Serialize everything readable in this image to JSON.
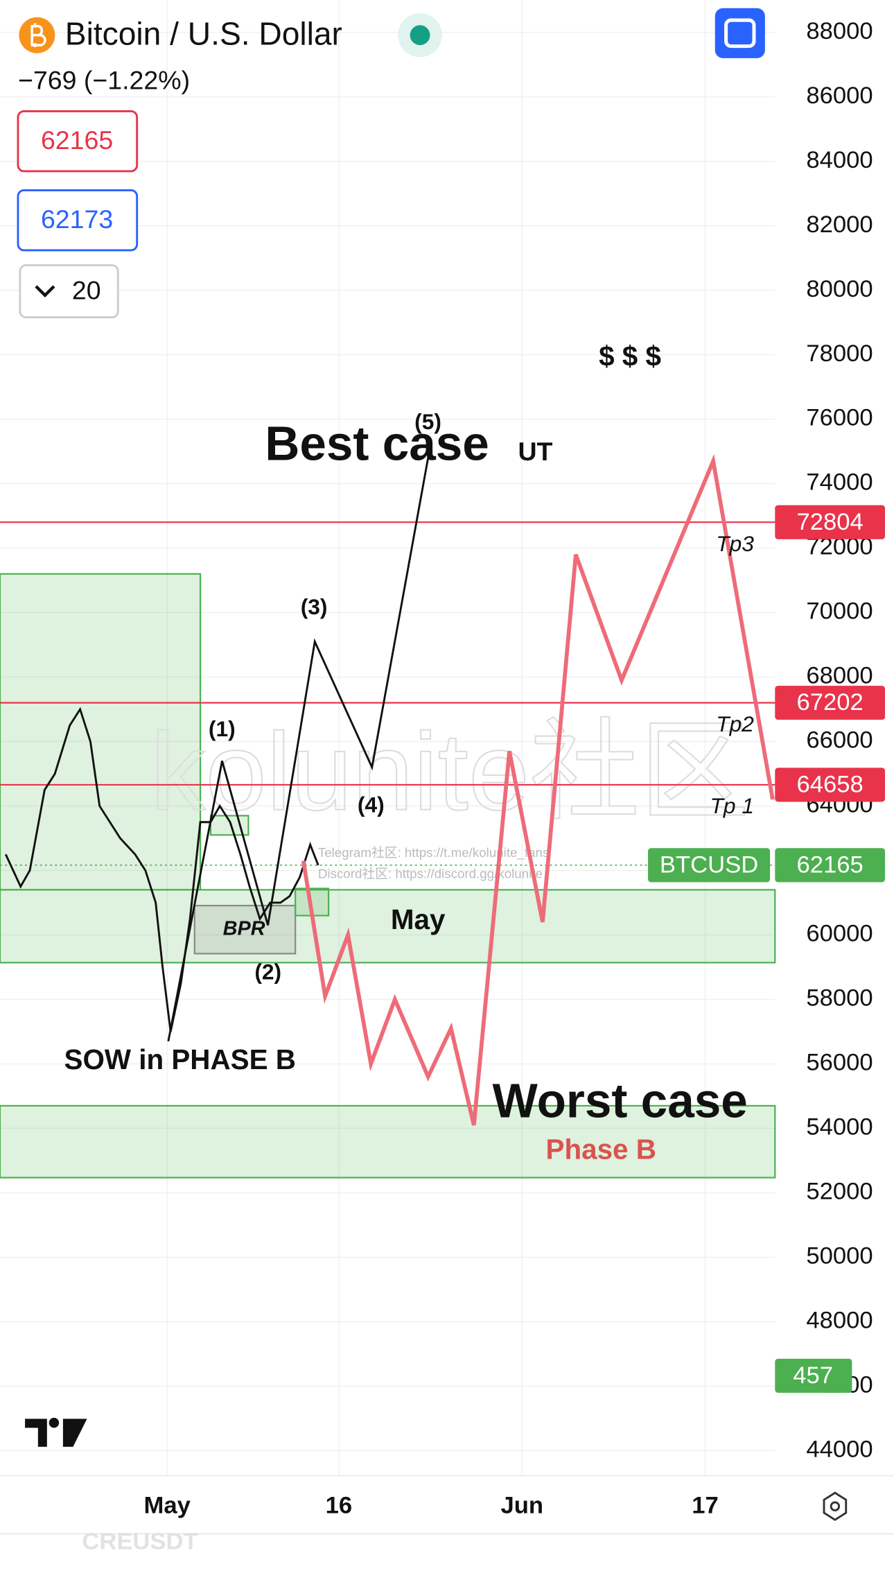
{
  "header": {
    "symbol": "Bitcoin / U.S. Dollar",
    "change": "−769 (−1.22%)",
    "sell": "62165",
    "buy": "62173",
    "quantity": "20"
  },
  "chart_data": {
    "type": "line",
    "xlim": [
      -13.6,
      54.1
    ],
    "xticks": [
      {
        "value": 1,
        "label": "May"
      },
      16,
      {
        "value": 32,
        "label": "Jun"
      },
      {
        "value": 48,
        "label": "17"
      }
    ],
    "ylim": [
      43220,
      89000
    ],
    "yticks": [
      44000,
      46000,
      48000,
      50000,
      52000,
      54000,
      56000,
      58000,
      60000,
      62000,
      64000,
      66000,
      68000,
      70000,
      72000,
      74000,
      76000,
      78000,
      80000,
      82000,
      84000,
      86000,
      88000
    ],
    "grid": true,
    "series": [
      {
        "name": "BTCUSD",
        "color": "#111111",
        "x": [
          -13.1,
          -11.8,
          -11.0,
          -9.7,
          -8.8,
          -7.5,
          -6.6,
          -5.7,
          -4.9,
          -4.0,
          -3.1,
          -1.8,
          -0.9,
          0.0,
          0.6,
          1.3,
          2.2,
          3.0,
          3.9,
          4.8,
          5.6,
          6.5,
          7.4,
          8.2,
          9.1,
          10.0,
          10.9,
          11.7,
          12.6,
          13.5,
          14.2
        ],
        "values": [
          62500,
          61500,
          62000,
          64500,
          65000,
          66500,
          67000,
          66000,
          64000,
          63500,
          63000,
          62500,
          62000,
          61000,
          59000,
          57000,
          58500,
          60500,
          63500,
          63500,
          64000,
          63500,
          62500,
          61500,
          60500,
          61000,
          61000,
          61200,
          61800,
          62800,
          62165
        ]
      },
      {
        "color": "#111111",
        "x": [
          1.1,
          5.8,
          9.8,
          13.9,
          18.9,
          23.8
        ],
        "values": [
          56700,
          65400,
          60300,
          69100,
          65200,
          74800
        ]
      },
      {
        "color": "#ee6b78",
        "x": [
          12.9,
          14.8,
          16.8,
          18.8,
          20.9,
          23.8,
          25.8,
          27.8,
          30.9,
          33.8,
          36.7,
          40.7,
          48.7,
          53.9
        ],
        "values": [
          62300,
          58100,
          60000,
          56000,
          58000,
          55600,
          57100,
          54100,
          65700,
          60400,
          71800,
          67900,
          74700,
          64200
        ]
      }
    ],
    "levels": [
      {
        "value": 72804,
        "color": "#e8334a"
      },
      {
        "value": 67202,
        "color": "#e8334a"
      },
      {
        "value": 64658,
        "color": "#e8334a"
      }
    ],
    "last_price": 62165,
    "last_color": "#4caf50",
    "volume_last": 457,
    "zones": [
      {
        "x": [
          -13.6,
          3.9
        ],
        "y": [
          61400,
          71200
        ],
        "color": "#4caf50"
      },
      {
        "x": [
          -13.6,
          54.1
        ],
        "y": [
          59140,
          61400
        ],
        "color": "#4caf50"
      },
      {
        "x": [
          -13.6,
          54.1
        ],
        "y": [
          52470,
          54700
        ],
        "color": "#4caf50"
      },
      {
        "x": [
          3.4,
          12.2
        ],
        "y": [
          59420,
          60910
        ],
        "color": "#888888"
      },
      {
        "x": [
          4.8,
          8.1
        ],
        "y": [
          63100,
          63700
        ],
        "color": "#4caf50"
      },
      {
        "x": [
          12.2,
          15.1
        ],
        "y": [
          60600,
          61440
        ],
        "color": "#4caf50"
      }
    ],
    "annotations": [
      "$ $ $",
      "Best case",
      "UT",
      "(5)",
      "(3)",
      "(1)",
      "(4)",
      "(2)",
      "BPR",
      "May",
      "SOW in PHASE B",
      "Worst case",
      "Phase B",
      "Tp3",
      "Tp2",
      "Tp 1"
    ]
  },
  "watermark": "kolunite社区",
  "watermark_lines": [
    "Telegram社区: https://t.me/kolunite_fans",
    "Discord社区: https://discord.gg/kolunite"
  ],
  "footer": "CREUSDT"
}
